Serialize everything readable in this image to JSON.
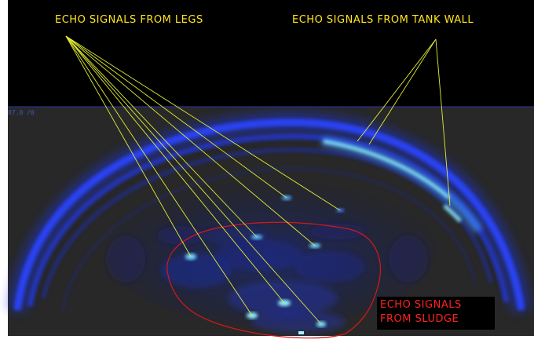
{
  "labels": {
    "legs": "ECHO SIGNALS FROM LEGS",
    "tank_wall": "ECHO SIGNALS FROM TANK WALL",
    "sludge_line1": "ECHO SIGNALS",
    "sludge_line2": "FROM SLUDGE",
    "scale_readout": "07.0 /0"
  },
  "colors": {
    "annotation_text": "#ffe41f",
    "annotation_line": "#e2ec34",
    "sludge_text": "#ff2020",
    "sludge_outline": "#d61818",
    "sonar_blue": "#2a3cff",
    "sonar_bright": "#7de8ff",
    "background_dark": "#282828",
    "background_black": "#000000"
  }
}
